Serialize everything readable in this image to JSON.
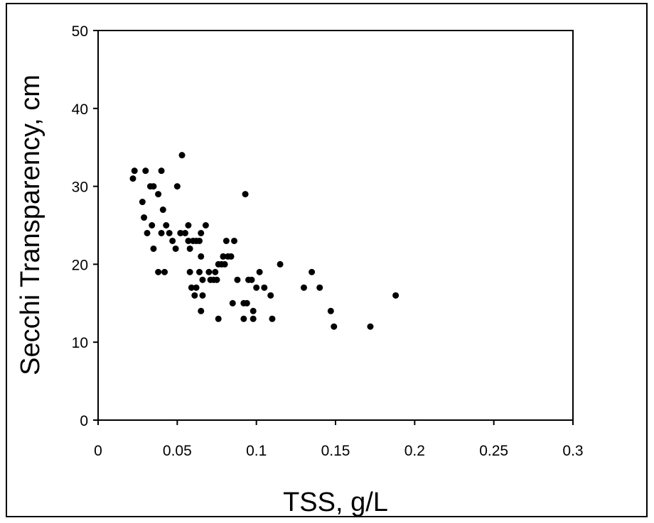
{
  "chart_data": {
    "type": "scatter",
    "title": "",
    "xlabel": "TSS, g/L",
    "ylabel": "Secchi  Transparency, cm",
    "xlim": [
      0,
      0.3
    ],
    "ylim": [
      0,
      50
    ],
    "x_ticks": [
      "0",
      "0.05",
      "0.1",
      "0.15",
      "0.2",
      "0.25",
      "0.3"
    ],
    "y_ticks": [
      "0",
      "10",
      "20",
      "30",
      "40",
      "50"
    ],
    "grid": false,
    "legend": "none",
    "marker_color": "#000000",
    "points": [
      [
        0.022,
        31
      ],
      [
        0.023,
        32
      ],
      [
        0.03,
        32
      ],
      [
        0.028,
        28
      ],
      [
        0.033,
        30
      ],
      [
        0.035,
        30
      ],
      [
        0.038,
        29
      ],
      [
        0.04,
        32
      ],
      [
        0.05,
        30
      ],
      [
        0.053,
        34
      ],
      [
        0.029,
        26
      ],
      [
        0.031,
        24
      ],
      [
        0.034,
        25
      ],
      [
        0.035,
        22
      ],
      [
        0.041,
        27
      ],
      [
        0.043,
        25
      ],
      [
        0.04,
        24
      ],
      [
        0.045,
        24
      ],
      [
        0.047,
        23
      ],
      [
        0.049,
        22
      ],
      [
        0.052,
        24
      ],
      [
        0.055,
        24
      ],
      [
        0.057,
        25
      ],
      [
        0.057,
        23
      ],
      [
        0.058,
        22
      ],
      [
        0.06,
        23
      ],
      [
        0.062,
        23
      ],
      [
        0.064,
        23
      ],
      [
        0.065,
        24
      ],
      [
        0.068,
        25
      ],
      [
        0.038,
        19
      ],
      [
        0.042,
        19
      ],
      [
        0.058,
        19
      ],
      [
        0.059,
        17
      ],
      [
        0.061,
        16
      ],
      [
        0.062,
        17
      ],
      [
        0.064,
        19
      ],
      [
        0.065,
        21
      ],
      [
        0.066,
        18
      ],
      [
        0.066,
        16
      ],
      [
        0.065,
        14
      ],
      [
        0.07,
        19
      ],
      [
        0.071,
        18
      ],
      [
        0.073,
        18
      ],
      [
        0.074,
        19
      ],
      [
        0.075,
        18
      ],
      [
        0.076,
        20
      ],
      [
        0.078,
        20
      ],
      [
        0.079,
        21
      ],
      [
        0.08,
        20
      ],
      [
        0.081,
        23
      ],
      [
        0.082,
        21
      ],
      [
        0.084,
        21
      ],
      [
        0.086,
        23
      ],
      [
        0.076,
        13
      ],
      [
        0.085,
        15
      ],
      [
        0.088,
        18
      ],
      [
        0.092,
        15
      ],
      [
        0.092,
        13
      ],
      [
        0.094,
        15
      ],
      [
        0.093,
        29
      ],
      [
        0.095,
        18
      ],
      [
        0.097,
        18
      ],
      [
        0.098,
        14
      ],
      [
        0.098,
        13
      ],
      [
        0.1,
        17
      ],
      [
        0.102,
        19
      ],
      [
        0.105,
        17
      ],
      [
        0.109,
        16
      ],
      [
        0.11,
        13
      ],
      [
        0.115,
        20
      ],
      [
        0.13,
        17
      ],
      [
        0.135,
        19
      ],
      [
        0.14,
        17
      ],
      [
        0.147,
        14
      ],
      [
        0.149,
        12
      ],
      [
        0.172,
        12
      ],
      [
        0.188,
        16
      ]
    ]
  }
}
